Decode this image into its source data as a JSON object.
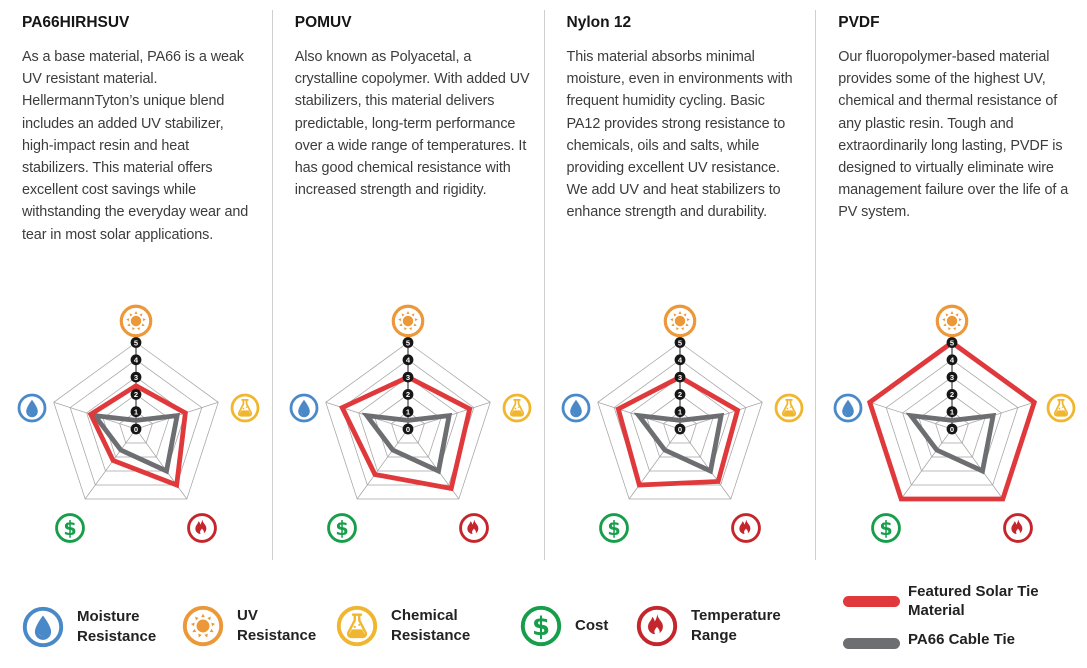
{
  "materials": [
    {
      "title": "PA66HIRHSUV",
      "description": "As a base material, PA66 is a weak UV resistant material. HellermannTyton’s unique blend includes an added UV stabilizer, high-impact resin and heat stabilizers. This material offers excellent cost savings while withstanding the everyday wear and tear in most solar applications."
    },
    {
      "title": "POMUV",
      "description": "Also known as Polyacetal, a crystalline copolymer. With added UV stabilizers, this material delivers predictable, long-term performance over a wide range of temperatures. It has good chemical resistance with increased strength and rigidity."
    },
    {
      "title": "Nylon 12",
      "description": "This material absorbs minimal moisture, even in environments with frequent humidity cycling. Basic PA12 provides strong resistance to chemicals, oils and salts, while providing excellent UV resistance. We add UV and heat stabilizers to enhance strength and durability."
    },
    {
      "title": "PVDF",
      "description": "Our fluoropolymer-based material provides some of the highest UV, chemical and thermal resistance of any plastic resin. Tough and extraordinarily long lasting, PVDF is designed to virtually eliminate wire management failure over the life of a PV system."
    }
  ],
  "chart_data": {
    "type": "radar",
    "axes": [
      "UV Resistance",
      "Chemical Resistance",
      "Temperature Range",
      "Cost",
      "Moisture Resistance"
    ],
    "scale": {
      "min": 0,
      "max": 5,
      "tick_labels": [
        "0",
        "1",
        "2",
        "3",
        "4",
        "5"
      ]
    },
    "grid": true,
    "series_names": [
      "Featured Solar Tie Material",
      "PA66 Cable Tie"
    ],
    "baseline_name": "PA66 Cable Tie",
    "baseline_values": [
      0.5,
      2.5,
      3,
      1.5,
      2.5
    ],
    "charts": [
      {
        "material": "PA66HIRHSUV",
        "featured_values": [
          2.5,
          3,
          4,
          2.25,
          2.75
        ]
      },
      {
        "material": "POMUV",
        "featured_values": [
          3,
          3.75,
          4.25,
          3.25,
          4
        ]
      },
      {
        "material": "Nylon 12",
        "featured_values": [
          3,
          3.5,
          3.75,
          4,
          3.75
        ]
      },
      {
        "material": "PVDF",
        "featured_values": [
          5,
          5,
          5,
          5,
          5
        ]
      }
    ]
  },
  "legend": {
    "items": [
      {
        "icon": "moisture-drop",
        "label": "Moisture Resistance"
      },
      {
        "icon": "uv-sun",
        "label": "UV Resistance"
      },
      {
        "icon": "chemical-flask",
        "label": "Chemical Resistance"
      },
      {
        "icon": "cost-dollar",
        "label": "Cost"
      },
      {
        "icon": "temperature-flame",
        "label": "Temperature Range"
      }
    ],
    "lines": [
      {
        "swatch": "red-line",
        "label": "Featured Solar Tie Material"
      },
      {
        "swatch": "gray-line",
        "label": "PA66 Cable Tie"
      }
    ]
  },
  "colors": {
    "featured_red": "#E0393C",
    "baseline_gray": "#6D6E71",
    "moisture_blue": "#4A89C8",
    "uv_orange": "#EC9839",
    "chemical_yellow": "#F0B62F",
    "cost_green": "#179E4B",
    "flame_red": "#C5262C",
    "grid_gray": "#A5A5A5",
    "tick_disc_black": "#161616"
  }
}
